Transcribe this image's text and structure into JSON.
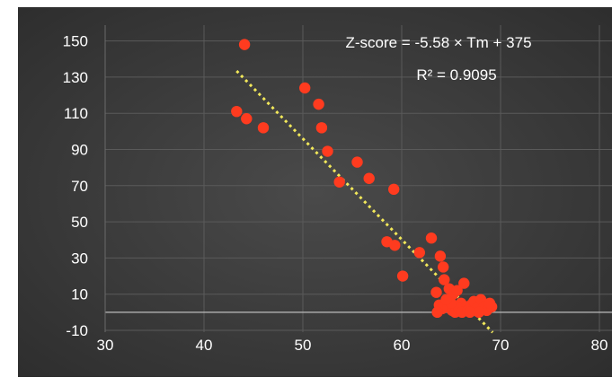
{
  "chart_data": {
    "type": "scatter",
    "title": "",
    "xlabel": "",
    "ylabel": "",
    "xlim": [
      30,
      80
    ],
    "ylim": [
      -10,
      160
    ],
    "x_ticks": [
      "30",
      "40",
      "50",
      "60",
      "70",
      "80"
    ],
    "y_ticks": [
      "-10",
      "10",
      "30",
      "50",
      "70",
      "90",
      "110",
      "130",
      "150"
    ],
    "grid": true,
    "background_color": "#3a3a3a",
    "point_color": "#ff3b1f",
    "trendline_color": "#f2e85a",
    "equation_text": "Z-score = -5.58 × Tm + 375",
    "r2_text": "R² = 0.9095",
    "trendline": {
      "slope": -5.58,
      "intercept": 375,
      "x_start": 43.3,
      "x_end": 69.2
    },
    "points": [
      {
        "x": 44.1,
        "y": 148
      },
      {
        "x": 43.3,
        "y": 111
      },
      {
        "x": 44.3,
        "y": 107
      },
      {
        "x": 46.0,
        "y": 102
      },
      {
        "x": 50.2,
        "y": 124
      },
      {
        "x": 51.6,
        "y": 115
      },
      {
        "x": 51.9,
        "y": 102
      },
      {
        "x": 52.5,
        "y": 89
      },
      {
        "x": 53.7,
        "y": 72
      },
      {
        "x": 55.5,
        "y": 83
      },
      {
        "x": 56.7,
        "y": 74
      },
      {
        "x": 59.2,
        "y": 68
      },
      {
        "x": 58.5,
        "y": 39
      },
      {
        "x": 59.3,
        "y": 37
      },
      {
        "x": 60.1,
        "y": 20
      },
      {
        "x": 61.8,
        "y": 33
      },
      {
        "x": 63.0,
        "y": 41
      },
      {
        "x": 63.9,
        "y": 31
      },
      {
        "x": 64.2,
        "y": 25
      },
      {
        "x": 64.3,
        "y": 18
      },
      {
        "x": 64.8,
        "y": 13
      },
      {
        "x": 63.5,
        "y": 11
      },
      {
        "x": 65.2,
        "y": 10
      },
      {
        "x": 65.6,
        "y": 12
      },
      {
        "x": 66.3,
        "y": 16
      },
      {
        "x": 66.0,
        "y": 5
      },
      {
        "x": 66.5,
        "y": 3
      },
      {
        "x": 63.8,
        "y": 4
      },
      {
        "x": 64.1,
        "y": 2
      },
      {
        "x": 64.7,
        "y": 3
      },
      {
        "x": 65.1,
        "y": 1
      },
      {
        "x": 65.4,
        "y": 0
      },
      {
        "x": 65.8,
        "y": 2
      },
      {
        "x": 66.1,
        "y": 0
      },
      {
        "x": 66.7,
        "y": 1
      },
      {
        "x": 67.0,
        "y": 4
      },
      {
        "x": 67.3,
        "y": 6
      },
      {
        "x": 67.6,
        "y": 2
      },
      {
        "x": 68.0,
        "y": 7
      },
      {
        "x": 68.3,
        "y": 3
      },
      {
        "x": 68.6,
        "y": 1
      },
      {
        "x": 69.1,
        "y": 3
      },
      {
        "x": 67.8,
        "y": 0
      },
      {
        "x": 66.9,
        "y": 0
      },
      {
        "x": 63.6,
        "y": 0
      },
      {
        "x": 65.0,
        "y": 5
      },
      {
        "x": 68.9,
        "y": 5
      },
      {
        "x": 64.5,
        "y": 7
      }
    ]
  }
}
